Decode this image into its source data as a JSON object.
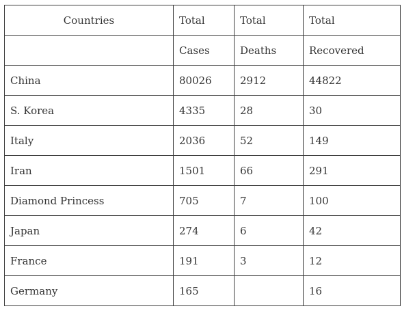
{
  "table": {
    "header_rows": [
      [
        "Countries",
        "Total",
        "Total",
        "Total"
      ],
      [
        "",
        "Cases",
        "Deaths",
        "Recovered"
      ]
    ],
    "rows": [
      [
        "China",
        "80026",
        "2912",
        "44822"
      ],
      [
        "S. Korea",
        "4335",
        "28",
        "30"
      ],
      [
        "Italy",
        "2036",
        "52",
        "149"
      ],
      [
        "Iran",
        "1501",
        "66",
        "291"
      ],
      [
        "Diamond Princess",
        "705",
        "7",
        "100"
      ],
      [
        "Japan",
        "274",
        "6",
        "42"
      ],
      [
        "France",
        "191",
        "3",
        "12"
      ],
      [
        "Germany",
        "165",
        "",
        "16"
      ]
    ]
  }
}
